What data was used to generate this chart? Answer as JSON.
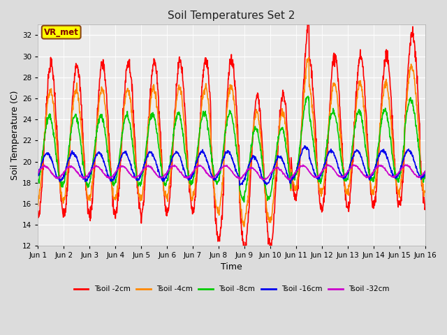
{
  "title": "Soil Temperatures Set 2",
  "xlabel": "Time",
  "ylabel": "Soil Temperature (C)",
  "ylim": [
    12,
    33
  ],
  "yticks": [
    12,
    14,
    16,
    18,
    20,
    22,
    24,
    26,
    28,
    30,
    32
  ],
  "x_labels": [
    "Jun 1",
    "Jun 2",
    "Jun 3",
    "Jun 4",
    "Jun 5",
    "Jun 6",
    "Jun 7",
    "Jun 8",
    "Jun 9",
    "Jun 10",
    "Jun 11",
    "Jun 12",
    "Jun 13",
    "Jun 14",
    "Jun 15",
    "Jun 16"
  ],
  "annotation_text": "VR_met",
  "annotation_box_color": "#FFFF00",
  "annotation_text_color": "#800000",
  "series": [
    {
      "label": "Tsoil -2cm",
      "color": "#FF0000",
      "linewidth": 1.2
    },
    {
      "label": "Tsoil -4cm",
      "color": "#FF8800",
      "linewidth": 1.2
    },
    {
      "label": "Tsoil -8cm",
      "color": "#00CC00",
      "linewidth": 1.2
    },
    {
      "label": "Tsoil -16cm",
      "color": "#0000EE",
      "linewidth": 1.2
    },
    {
      "label": "Tsoil -32cm",
      "color": "#CC00CC",
      "linewidth": 1.2
    }
  ],
  "num_days": 15,
  "points_per_day": 96,
  "fig_bg": "#DCDCDC",
  "ax_bg": "#EBEBEB"
}
